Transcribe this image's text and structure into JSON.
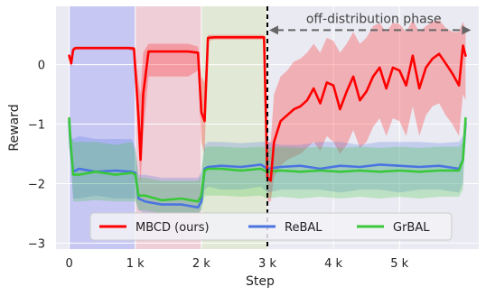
{
  "chart_data": {
    "type": "line",
    "xlabel": "Step",
    "ylabel": "Reward",
    "xlim": [
      -200,
      6200
    ],
    "ylim": [
      -3.1,
      0.98
    ],
    "xticks": [
      {
        "value": 0,
        "label": "0"
      },
      {
        "value": 1000,
        "label": "1 k"
      },
      {
        "value": 2000,
        "label": "2 k"
      },
      {
        "value": 3000,
        "label": "3 k"
      },
      {
        "value": 4000,
        "label": "4 k"
      },
      {
        "value": 5000,
        "label": "5 k"
      }
    ],
    "yticks": [
      {
        "value": 0,
        "label": "0"
      },
      {
        "value": -1,
        "label": "−1"
      },
      {
        "value": -2,
        "label": "−2"
      },
      {
        "value": -3,
        "label": "−3"
      }
    ],
    "grid": true,
    "legend_position": "bottom",
    "background_color": "#eaeaf2",
    "phases": [
      {
        "x0": 0,
        "x1": 1000,
        "color": "#aaaaf5"
      },
      {
        "x0": 1000,
        "x1": 2000,
        "color": "#f3b7c3"
      },
      {
        "x0": 2000,
        "x1": 3000,
        "color": "#dbe5c0"
      }
    ],
    "divider": {
      "x": 3000,
      "color": "#000000"
    },
    "annotation": {
      "text": "off-distribution phase",
      "x0": 3000,
      "x1": 6000,
      "y": 0.58
    },
    "series": [
      {
        "name": "MBCD (ours)",
        "color": "#ff0000",
        "x": [
          0,
          30,
          60,
          100,
          300,
          600,
          900,
          980,
          1050,
          1080,
          1120,
          1200,
          1500,
          1800,
          1950,
          2000,
          2050,
          2100,
          2200,
          2500,
          2800,
          2950,
          3000,
          3050,
          3100,
          3200,
          3300,
          3400,
          3500,
          3600,
          3700,
          3800,
          3900,
          4000,
          4100,
          4200,
          4300,
          4400,
          4500,
          4600,
          4700,
          4800,
          4900,
          5000,
          5100,
          5200,
          5300,
          5400,
          5500,
          5600,
          5700,
          5800,
          5900,
          5960,
          6000
        ],
        "y": [
          0.15,
          0.02,
          0.25,
          0.28,
          0.28,
          0.28,
          0.28,
          0.27,
          -0.9,
          -1.6,
          -0.5,
          0.22,
          0.22,
          0.22,
          0.2,
          -0.8,
          -0.95,
          0.45,
          0.46,
          0.46,
          0.46,
          0.46,
          -1.9,
          -1.95,
          -1.3,
          -0.95,
          -0.85,
          -0.75,
          -0.7,
          -0.6,
          -0.4,
          -0.65,
          -0.3,
          -0.35,
          -0.75,
          -0.45,
          -0.2,
          -0.6,
          -0.45,
          -0.2,
          -0.05,
          -0.4,
          -0.05,
          -0.1,
          -0.35,
          0.15,
          -0.4,
          -0.05,
          0.1,
          0.18,
          0.02,
          -0.15,
          -0.35,
          0.32,
          0.15
        ],
        "band_upper": [
          0.2,
          0.1,
          0.3,
          0.3,
          0.3,
          0.3,
          0.3,
          0.3,
          -0.3,
          -0.5,
          0.2,
          0.35,
          0.35,
          0.35,
          0.3,
          -0.2,
          -0.3,
          0.5,
          0.5,
          0.5,
          0.5,
          0.5,
          -1.3,
          -1.3,
          -0.5,
          -0.2,
          -0.1,
          0.05,
          0.1,
          0.2,
          0.35,
          0.2,
          0.45,
          0.4,
          0.2,
          0.35,
          0.55,
          0.35,
          0.45,
          0.65,
          0.7,
          0.55,
          0.7,
          0.68,
          0.55,
          0.75,
          0.55,
          0.65,
          0.72,
          0.75,
          0.62,
          0.55,
          0.55,
          0.72,
          0.6
        ],
        "band_lower": [
          0.1,
          -0.05,
          0.2,
          0.25,
          0.25,
          0.25,
          0.25,
          0.22,
          -1.4,
          -2.0,
          -1.2,
          -0.2,
          -0.2,
          -0.2,
          -0.1,
          -1.3,
          -1.5,
          0.4,
          0.42,
          0.42,
          0.42,
          0.42,
          -2.3,
          -2.3,
          -1.9,
          -1.7,
          -1.6,
          -1.55,
          -1.5,
          -1.4,
          -1.3,
          -1.45,
          -1.2,
          -1.3,
          -1.5,
          -1.35,
          -1.1,
          -1.4,
          -1.3,
          -1.05,
          -0.9,
          -1.2,
          -0.9,
          -0.95,
          -1.2,
          -0.7,
          -1.2,
          -0.85,
          -0.7,
          -0.65,
          -0.85,
          -1.0,
          -1.2,
          -0.5,
          -0.6
        ]
      },
      {
        "name": "ReBAL",
        "color": "#4b74e0",
        "x": [
          0,
          20,
          60,
          150,
          400,
          700,
          950,
          1000,
          1050,
          1150,
          1400,
          1700,
          1950,
          2000,
          2050,
          2100,
          2300,
          2600,
          2900,
          3000,
          3200,
          3500,
          3800,
          4100,
          4400,
          4700,
          5000,
          5300,
          5600,
          5900,
          5960,
          6000
        ],
        "y": [
          -0.95,
          -1.4,
          -1.8,
          -1.75,
          -1.8,
          -1.78,
          -1.8,
          -1.82,
          -2.25,
          -2.3,
          -2.35,
          -2.35,
          -2.4,
          -2.3,
          -1.75,
          -1.72,
          -1.7,
          -1.72,
          -1.68,
          -1.75,
          -1.72,
          -1.7,
          -1.75,
          -1.7,
          -1.72,
          -1.68,
          -1.7,
          -1.72,
          -1.7,
          -1.75,
          -1.6,
          -0.98
        ],
        "band_upper": [
          -0.9,
          -1.2,
          -1.25,
          -1.2,
          -1.25,
          -1.25,
          -1.25,
          -1.4,
          -1.85,
          -1.85,
          -1.9,
          -1.9,
          -1.9,
          -1.8,
          -1.35,
          -1.3,
          -1.3,
          -1.32,
          -1.3,
          -1.3,
          -1.35,
          -1.35,
          -1.3,
          -1.3,
          -1.35,
          -1.3,
          -1.3,
          -1.3,
          -1.32,
          -1.3,
          -1.2,
          -0.9
        ],
        "band_lower": [
          -1.0,
          -1.6,
          -2.25,
          -2.25,
          -2.2,
          -2.25,
          -2.25,
          -2.25,
          -2.45,
          -2.5,
          -2.5,
          -2.5,
          -2.5,
          -2.45,
          -2.1,
          -2.05,
          -2.1,
          -2.1,
          -2.05,
          -2.15,
          -2.1,
          -2.1,
          -2.1,
          -2.15,
          -2.1,
          -2.1,
          -2.15,
          -2.1,
          -2.1,
          -2.15,
          -2.0,
          -1.05
        ]
      },
      {
        "name": "GrBAL",
        "color": "#39c839",
        "x": [
          0,
          20,
          60,
          150,
          400,
          700,
          950,
          1000,
          1050,
          1150,
          1400,
          1700,
          1950,
          2000,
          2050,
          2100,
          2300,
          2600,
          2900,
          3000,
          3200,
          3500,
          3800,
          4100,
          4400,
          4700,
          5000,
          5300,
          5600,
          5900,
          5960,
          6000
        ],
        "y": [
          -0.9,
          -1.3,
          -1.85,
          -1.85,
          -1.8,
          -1.85,
          -1.82,
          -1.85,
          -2.2,
          -2.2,
          -2.28,
          -2.25,
          -2.3,
          -2.2,
          -1.78,
          -1.75,
          -1.75,
          -1.78,
          -1.75,
          -1.8,
          -1.78,
          -1.8,
          -1.78,
          -1.8,
          -1.78,
          -1.8,
          -1.78,
          -1.8,
          -1.78,
          -1.78,
          -1.6,
          -0.9
        ],
        "band_upper": [
          -0.85,
          -1.15,
          -1.3,
          -1.3,
          -1.3,
          -1.35,
          -1.3,
          -1.45,
          -1.9,
          -1.9,
          -1.95,
          -1.95,
          -1.95,
          -1.85,
          -1.4,
          -1.38,
          -1.38,
          -1.4,
          -1.38,
          -1.4,
          -1.38,
          -1.4,
          -1.38,
          -1.4,
          -1.38,
          -1.4,
          -1.38,
          -1.4,
          -1.38,
          -1.38,
          -1.3,
          -0.85
        ],
        "band_lower": [
          -0.95,
          -1.5,
          -2.3,
          -2.3,
          -2.28,
          -2.3,
          -2.3,
          -2.3,
          -2.45,
          -2.45,
          -2.5,
          -2.5,
          -2.5,
          -2.45,
          -2.2,
          -2.2,
          -2.2,
          -2.22,
          -2.2,
          -2.25,
          -2.22,
          -2.25,
          -2.22,
          -2.25,
          -2.22,
          -2.25,
          -2.22,
          -2.25,
          -2.22,
          -2.22,
          -2.1,
          -0.95
        ]
      }
    ]
  }
}
